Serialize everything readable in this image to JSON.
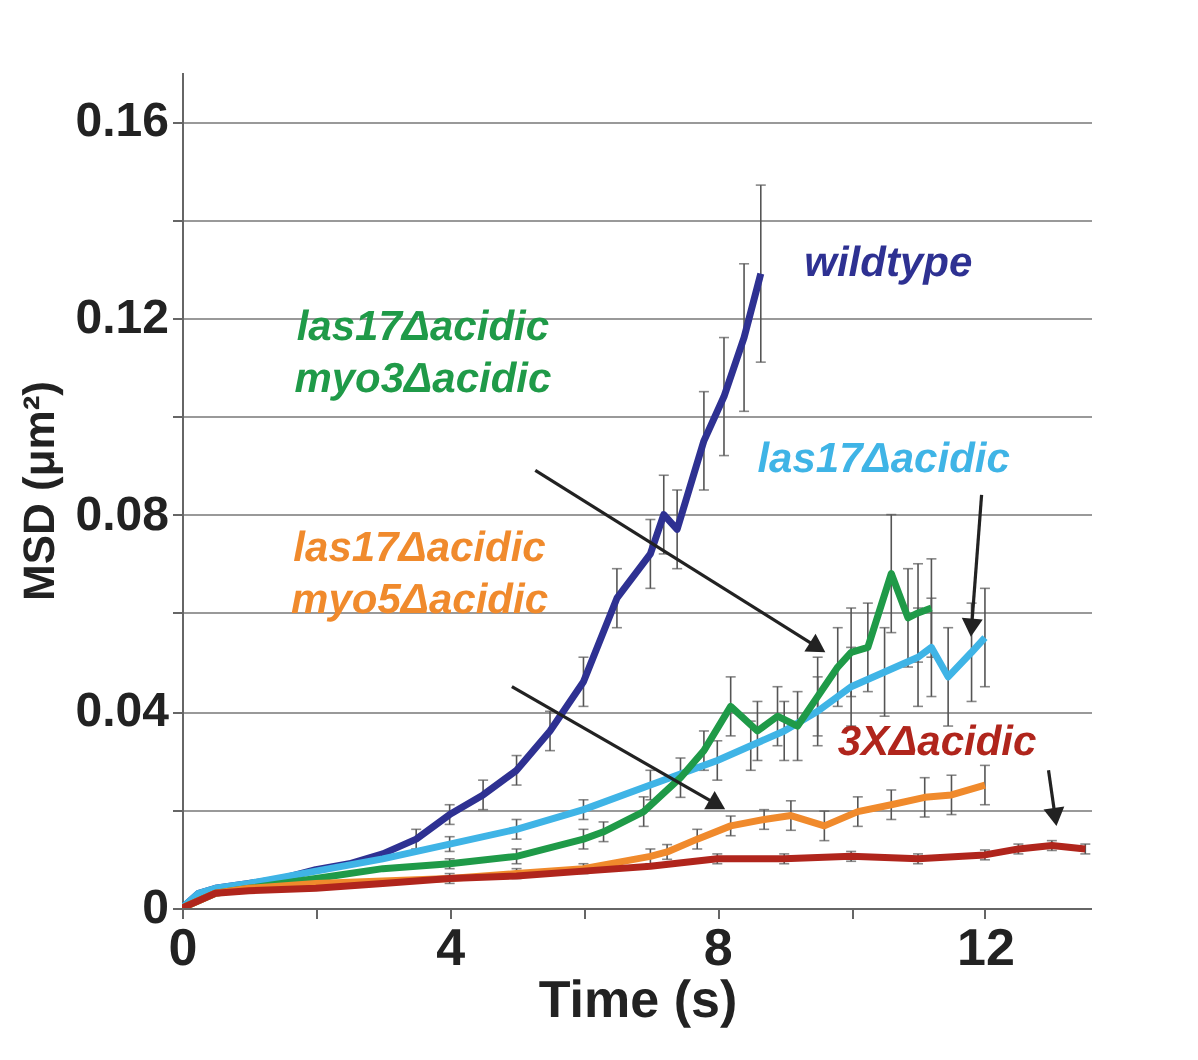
{
  "chart_data": {
    "type": "line",
    "xlabel": "Time (s)",
    "ylabel": "MSD (μm²)",
    "xlim": [
      0,
      13.6
    ],
    "xticks": [
      0,
      {
        "value": 2,
        "label": null
      },
      4,
      {
        "value": 6,
        "label": null
      },
      8,
      {
        "value": 10,
        "label": null
      },
      12
    ],
    "ylim": [
      0,
      0.17
    ],
    "yticks": [
      0,
      {
        "value": 0.02,
        "label": null
      },
      0.04,
      {
        "value": 0.06,
        "label": null
      },
      0.08,
      {
        "value": 0.1,
        "label": null
      },
      0.12,
      {
        "value": 0.14,
        "label": null
      },
      0.16
    ],
    "grid": "y",
    "legend": false,
    "series": [
      {
        "name": "wildtype",
        "color": "#2e3192",
        "x": [
          0,
          0.25,
          0.5,
          1,
          1.5,
          2,
          2.5,
          3,
          3.5,
          4,
          4.5,
          5,
          5.5,
          6,
          6.5,
          7,
          7.2,
          7.4,
          7.8,
          8.1,
          8.4,
          8.65
        ],
        "values": [
          0,
          0.003,
          0.004,
          0.005,
          0.006,
          0.0078,
          0.009,
          0.011,
          0.014,
          0.019,
          0.023,
          0.028,
          0.036,
          0.046,
          0.063,
          0.072,
          0.08,
          0.077,
          0.095,
          0.104,
          0.116,
          0.129
        ],
        "errors": [
          null,
          null,
          null,
          null,
          null,
          null,
          null,
          null,
          0.002,
          0.002,
          0.003,
          0.003,
          0.004,
          0.005,
          0.006,
          0.007,
          0.008,
          0.008,
          0.01,
          0.012,
          0.015,
          0.018
        ]
      },
      {
        "name": "las17Δacidic",
        "color": "#3fb4e6",
        "x": [
          0,
          0.25,
          0.5,
          1,
          2,
          3,
          4,
          5,
          6,
          7,
          8,
          8.5,
          9,
          9.5,
          10,
          10.5,
          11,
          11.2,
          11.45,
          11.8,
          12
        ],
        "values": [
          0,
          0.003,
          0.004,
          0.005,
          0.0075,
          0.01,
          0.013,
          0.016,
          0.02,
          0.025,
          0.03,
          0.033,
          0.036,
          0.04,
          0.045,
          0.048,
          0.051,
          0.053,
          0.047,
          0.052,
          0.055
        ],
        "errors": [
          null,
          null,
          null,
          null,
          null,
          null,
          0.0015,
          0.002,
          0.002,
          0.003,
          0.004,
          0.005,
          0.006,
          0.007,
          0.008,
          0.009,
          0.01,
          0.01,
          0.01,
          0.01,
          0.01
        ]
      },
      {
        "name": "las17Δacidic myo3Δacidic",
        "color": "#1f9a48",
        "x": [
          0,
          0.5,
          1,
          2,
          3,
          4,
          5,
          6,
          6.3,
          6.9,
          7.45,
          7.8,
          8.2,
          8.6,
          8.9,
          9.2,
          9.5,
          9.8,
          10,
          10.25,
          10.6,
          10.85,
          11,
          11.2
        ],
        "values": [
          0,
          0.003,
          0.004,
          0.006,
          0.008,
          0.009,
          0.0105,
          0.014,
          0.0155,
          0.0196,
          0.0265,
          0.032,
          0.041,
          0.036,
          0.039,
          0.037,
          0.043,
          0.049,
          0.052,
          0.053,
          0.068,
          0.059,
          0.06,
          0.061
        ],
        "errors": [
          null,
          null,
          null,
          null,
          null,
          0.001,
          0.0015,
          0.002,
          0.002,
          0.003,
          0.004,
          0.004,
          0.006,
          0.006,
          0.006,
          0.007,
          0.008,
          0.008,
          0.009,
          0.009,
          0.012,
          0.01,
          0.01,
          0.01
        ]
      },
      {
        "name": "las17Δacidic myo5Δacidic",
        "color": "#f08a2c",
        "x": [
          0,
          0.5,
          1,
          2,
          3,
          4,
          5,
          6,
          7,
          7.25,
          7.7,
          8.2,
          8.7,
          9.1,
          9.6,
          10.1,
          10.6,
          11.1,
          11.5,
          12
        ],
        "values": [
          0,
          0.003,
          0.004,
          0.005,
          0.0055,
          0.006,
          0.007,
          0.008,
          0.0105,
          0.0114,
          0.014,
          0.0167,
          0.018,
          0.0188,
          0.0167,
          0.0196,
          0.021,
          0.0225,
          0.023,
          0.025
        ],
        "errors": [
          null,
          null,
          null,
          null,
          null,
          0.001,
          0.001,
          0.001,
          0.0015,
          0.0015,
          0.002,
          0.002,
          0.002,
          0.003,
          0.003,
          0.003,
          0.003,
          0.004,
          0.004,
          0.004
        ]
      },
      {
        "name": "3XΔacidic",
        "color": "#b0251c",
        "x": [
          0,
          0.5,
          1,
          2,
          3,
          4,
          5,
          6,
          7,
          8,
          9,
          10,
          11,
          12,
          12.5,
          13,
          13.5
        ],
        "values": [
          0,
          0.003,
          0.0035,
          0.004,
          0.005,
          0.006,
          0.0065,
          0.0075,
          0.0085,
          0.01,
          0.01,
          0.0105,
          0.01,
          0.0108,
          0.012,
          0.0127,
          0.012
        ],
        "errors": [
          null,
          null,
          null,
          null,
          null,
          null,
          null,
          null,
          null,
          0.001,
          0.001,
          0.001,
          0.001,
          0.001,
          0.001,
          0.001,
          0.001
        ]
      }
    ]
  }
}
